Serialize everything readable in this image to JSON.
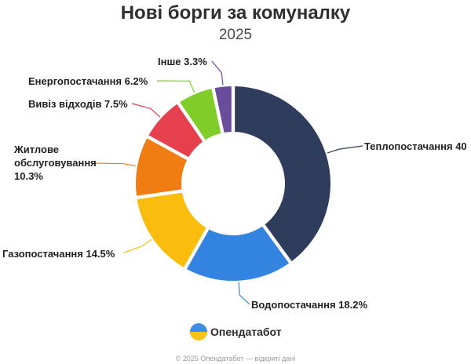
{
  "chart_data": {
    "type": "pie",
    "title": "Нові борги за комуналку",
    "subtitle": "2025",
    "slices": [
      {
        "label": "Теплопостачання",
        "value": 40.0,
        "display": "Теплопостачання 40",
        "color": "#2e3d5c"
      },
      {
        "label": "Водопостачання",
        "value": 18.2,
        "display": "Водопостачання 18.2%",
        "color": "#3384e0"
      },
      {
        "label": "Газопостачання",
        "value": 14.5,
        "display": "Газопостачання 14.5%",
        "color": "#fbbd0d"
      },
      {
        "label": "Житлове обслуговування",
        "value": 10.3,
        "display": [
          "Житлове",
          "обслуговування",
          "10.3%"
        ],
        "color": "#f07d12"
      },
      {
        "label": "Вивіз відходів",
        "value": 7.5,
        "display": "Вивіз відходів 7.5%",
        "color": "#e6404e"
      },
      {
        "label": "Енергопостачання",
        "value": 6.2,
        "display": "Енергопостачання 6.2%",
        "color": "#80cc28"
      },
      {
        "label": "Інше",
        "value": 3.3,
        "display": "Інше 3.3%",
        "color": "#6a4c9c"
      }
    ],
    "brand": "Опендатабот",
    "footer": "© 2025 Опендатабот — відкриті дані"
  }
}
